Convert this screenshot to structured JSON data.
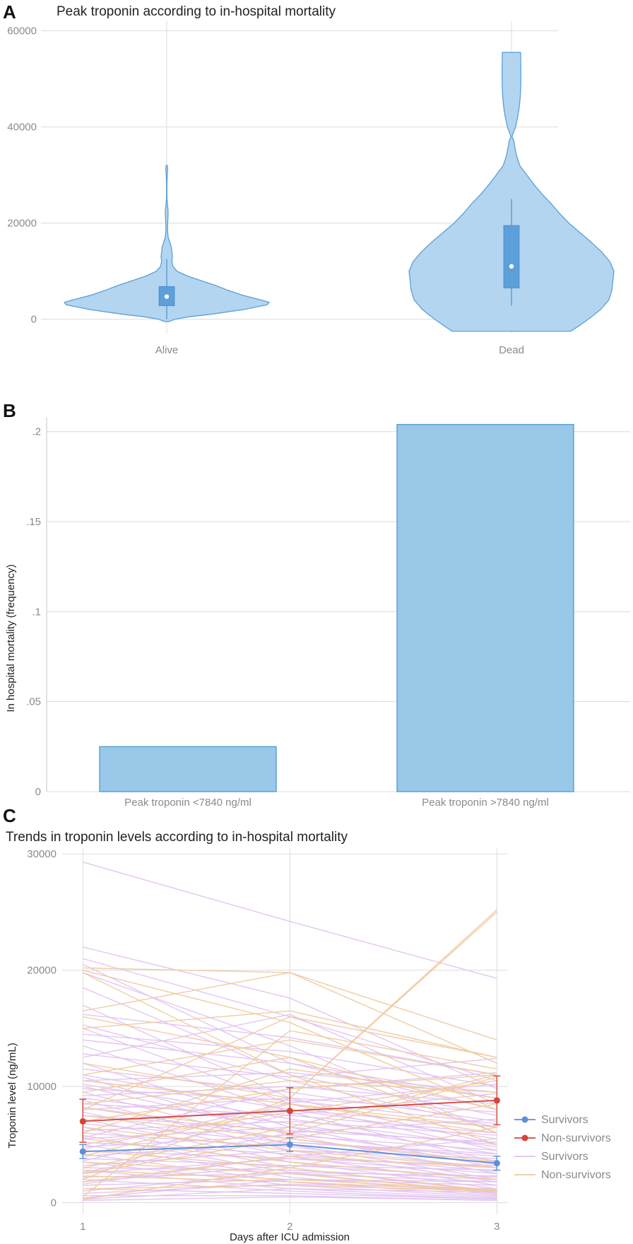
{
  "panels": {
    "A": {
      "letter": "A"
    },
    "B": {
      "letter": "B"
    },
    "C": {
      "letter": "C"
    }
  },
  "chart_data": [
    {
      "type": "violin",
      "title": "Peak troponin according to in-hospital mortality",
      "xlabel": "",
      "ylabel": "",
      "ylim": [
        -3000,
        62000
      ],
      "yticks": [
        0,
        20000,
        40000,
        60000
      ],
      "grid": true,
      "categories": [
        "Alive",
        "Dead"
      ],
      "colors": {
        "fill": "#b3d5f0",
        "stroke": "#5a9fd6",
        "box": "#5d9fd8"
      },
      "groups": [
        {
          "name": "Alive",
          "whisker": [
            0,
            12500
          ],
          "q1": 2800,
          "median": 4700,
          "q3": 6800,
          "range": [
            -500,
            32000
          ],
          "density": [
            [
              -500,
              0.02
            ],
            [
              0,
              0.08
            ],
            [
              500,
              0.22
            ],
            [
              1000,
              0.42
            ],
            [
              2000,
              0.75
            ],
            [
              3000,
              0.98
            ],
            [
              3500,
              1.0
            ],
            [
              4000,
              0.92
            ],
            [
              5000,
              0.74
            ],
            [
              6000,
              0.6
            ],
            [
              7000,
              0.48
            ],
            [
              8000,
              0.34
            ],
            [
              9000,
              0.2
            ],
            [
              10000,
              0.1
            ],
            [
              11000,
              0.06
            ],
            [
              12000,
              0.05
            ],
            [
              13000,
              0.055
            ],
            [
              14000,
              0.05
            ],
            [
              15000,
              0.045
            ],
            [
              16000,
              0.03
            ],
            [
              17000,
              0.015
            ],
            [
              18000,
              0.01
            ],
            [
              19000,
              0.008
            ],
            [
              20000,
              0.009
            ],
            [
              21000,
              0.012
            ],
            [
              22000,
              0.014
            ],
            [
              23000,
              0.012
            ],
            [
              24000,
              0.006
            ],
            [
              25000,
              0.003
            ],
            [
              26000,
              0.002
            ],
            [
              28000,
              0.002
            ],
            [
              30000,
              0.005
            ],
            [
              31000,
              0.008
            ],
            [
              32000,
              0.006
            ]
          ]
        },
        {
          "name": "Dead",
          "whisker": [
            2800,
            25000
          ],
          "q1": 6500,
          "median": 11000,
          "q3": 19500,
          "range": [
            -2500,
            55500
          ],
          "density": [
            [
              -2500,
              0.58
            ],
            [
              -1500,
              0.65
            ],
            [
              0,
              0.75
            ],
            [
              2000,
              0.87
            ],
            [
              4000,
              0.95
            ],
            [
              6000,
              0.98
            ],
            [
              8000,
              0.99
            ],
            [
              10000,
              1.0
            ],
            [
              12000,
              0.96
            ],
            [
              14000,
              0.88
            ],
            [
              16000,
              0.78
            ],
            [
              18000,
              0.67
            ],
            [
              20000,
              0.56
            ],
            [
              22000,
              0.47
            ],
            [
              24000,
              0.39
            ],
            [
              26000,
              0.3
            ],
            [
              28000,
              0.22
            ],
            [
              30000,
              0.15
            ],
            [
              32000,
              0.08
            ],
            [
              34000,
              0.05
            ],
            [
              36000,
              0.03
            ],
            [
              37000,
              0.025
            ],
            [
              38000,
              0.005
            ],
            [
              40000,
              0.04
            ],
            [
              42000,
              0.06
            ],
            [
              44000,
              0.075
            ],
            [
              46000,
              0.085
            ],
            [
              48000,
              0.09
            ],
            [
              50000,
              0.092
            ],
            [
              52000,
              0.092
            ],
            [
              55000,
              0.09
            ],
            [
              55500,
              0.09
            ]
          ]
        }
      ]
    },
    {
      "type": "bar",
      "title": "",
      "xlabel": "",
      "ylabel": "In hospital mortality (frequency)",
      "ylim": [
        0,
        0.205
      ],
      "yticks": [
        0,
        0.05,
        0.1,
        0.15,
        0.2
      ],
      "ytick_labels": [
        "0",
        ".05",
        ".1",
        ".15",
        ".2"
      ],
      "grid": true,
      "categories": [
        "Peak troponin <7840 ng/ml",
        "Peak troponin >7840 ng/ml"
      ],
      "values": [
        0.025,
        0.204
      ],
      "colors": {
        "fill": "#99c8e8",
        "stroke": "#4d9ad0"
      }
    },
    {
      "type": "line",
      "title": "Trends in troponin levels according to in-hospital mortality",
      "xlabel": "Days after ICU admission",
      "ylabel": "Troponin level (ng/mL)",
      "ylim": [
        -1000,
        30500
      ],
      "yticks": [
        0,
        10000,
        20000,
        30000
      ],
      "x": [
        1,
        2,
        3
      ],
      "xlim": [
        0.9,
        3.05
      ],
      "grid": true,
      "legend_position": "right",
      "series": [
        {
          "name": "Survivors",
          "kind": "mean",
          "color": "#5b8fd9",
          "values": [
            4400,
            5000,
            3400
          ],
          "err_low": [
            3800,
            4400,
            2800
          ],
          "err_high": [
            5000,
            5600,
            4000
          ]
        },
        {
          "name": "Non-survivors",
          "kind": "mean",
          "color": "#d6443a",
          "values": [
            7000,
            7900,
            8800
          ],
          "err_low": [
            5200,
            5900,
            6700
          ],
          "err_high": [
            8900,
            9900,
            10900
          ]
        },
        {
          "name": "Survivors",
          "kind": "individual",
          "color": "#e3c3f0",
          "lines": [
            [
              29300,
              24200,
              19300
            ],
            [
              22000,
              17600,
              9800
            ],
            [
              21000,
              16000,
              10500
            ],
            [
              20500,
              12000,
              8000
            ],
            [
              19800,
              13500,
              6000
            ],
            [
              18500,
              11000,
              7500
            ],
            [
              17000,
              9000,
              5000
            ],
            [
              16200,
              14200,
              11000
            ],
            [
              15300,
              10500,
              6500
            ],
            [
              15000,
              8500,
              4500
            ],
            [
              14000,
              12000,
              9000
            ],
            [
              13500,
              7800,
              3500
            ],
            [
              12800,
              10800,
              12400
            ],
            [
              12000,
              6500,
              3000
            ],
            [
              11500,
              9500,
              7000
            ],
            [
              11000,
              8000,
              5500
            ],
            [
              10800,
              5800,
              2500
            ],
            [
              10500,
              11200,
              9500
            ],
            [
              10200,
              7200,
              4800
            ],
            [
              10000,
              6000,
              3600
            ],
            [
              9800,
              8800,
              6800
            ],
            [
              9500,
              5000,
              2000
            ],
            [
              9200,
              10000,
              8500
            ],
            [
              9000,
              6800,
              4200
            ],
            [
              8800,
              4500,
              1800
            ],
            [
              8500,
              7500,
              6000
            ],
            [
              8200,
              5500,
              3300
            ],
            [
              8000,
              9000,
              7800
            ],
            [
              7800,
              4000,
              1500
            ],
            [
              7500,
              6200,
              5200
            ],
            [
              7200,
              3500,
              1200
            ],
            [
              7000,
              8000,
              6500
            ],
            [
              6800,
              5200,
              4000
            ],
            [
              6500,
              3000,
              900
            ],
            [
              6200,
              7000,
              5800
            ],
            [
              6000,
              4800,
              3000
            ],
            [
              5800,
              2600,
              800
            ],
            [
              5500,
              6500,
              5000
            ],
            [
              5200,
              4200,
              2700
            ],
            [
              5000,
              2200,
              700
            ],
            [
              4800,
              5800,
              4500
            ],
            [
              4500,
              3800,
              2500
            ],
            [
              4200,
              1800,
              600
            ],
            [
              4000,
              5200,
              4200
            ],
            [
              3800,
              3200,
              2200
            ],
            [
              3500,
              1500,
              500
            ],
            [
              3200,
              4500,
              3800
            ],
            [
              3000,
              2800,
              2000
            ],
            [
              2800,
              1200,
              400
            ],
            [
              2500,
              3800,
              3200
            ],
            [
              2200,
              2500,
              1800
            ],
            [
              2000,
              1000,
              300
            ],
            [
              1800,
              3200,
              2800
            ],
            [
              1500,
              2000,
              1500
            ],
            [
              1200,
              800,
              300
            ],
            [
              1000,
              2600,
              2300
            ],
            [
              800,
              1600,
              1200
            ],
            [
              600,
              600,
              200
            ],
            [
              400,
              2000,
              1800
            ],
            [
              300,
              1200,
              900
            ],
            [
              200,
              500,
              200
            ],
            [
              1600,
              4000,
              5500
            ],
            [
              2600,
              6000,
              7200
            ],
            [
              3600,
              7600,
              9400
            ],
            [
              4600,
              8600,
              10200
            ],
            [
              5600,
              9800,
              11200
            ],
            [
              12500,
              16200,
              8500
            ],
            [
              14500,
              13000,
              10000
            ]
          ]
        },
        {
          "name": "Non-survivors",
          "kind": "individual",
          "color": "#f0c9a0",
          "lines": [
            [
              20200,
              19800,
              12000
            ],
            [
              20000,
              15500,
              8000
            ],
            [
              19800,
              11000,
              5000
            ],
            [
              16500,
              19800,
              14000
            ],
            [
              16000,
              12500,
              6000
            ],
            [
              15000,
              16500,
              12500
            ],
            [
              12000,
              9000,
              25200
            ],
            [
              11000,
              14000,
              11000
            ],
            [
              10500,
              8500,
              6500
            ],
            [
              9500,
              12500,
              8000
            ],
            [
              8500,
              10500,
              9500
            ],
            [
              8200,
              6000,
              10800
            ],
            [
              8000,
              16000,
              12500
            ],
            [
              7500,
              5500,
              3500
            ],
            [
              7000,
              9800,
              11000
            ],
            [
              6500,
              4500,
              3000
            ],
            [
              6000,
              11500,
              9000
            ],
            [
              5500,
              3500,
              2000
            ],
            [
              5000,
              7800,
              10500
            ],
            [
              4500,
              3000,
              1000
            ],
            [
              4000,
              8500,
              6000
            ],
            [
              3500,
              2500,
              900
            ],
            [
              3000,
              6500,
              11000
            ],
            [
              2800,
              2000,
              1100
            ],
            [
              2500,
              5500,
              8500
            ],
            [
              2300,
              1800,
              1000
            ],
            [
              2000,
              9000,
              25000
            ],
            [
              1800,
              4000,
              3000
            ],
            [
              1200,
              1500,
              1000
            ],
            [
              500,
              14800,
              11500
            ],
            [
              300,
              3000,
              6500
            ]
          ]
        }
      ],
      "legend": [
        {
          "label": "Survivors",
          "style": "point-line",
          "color": "#5b8fd9"
        },
        {
          "label": "Non-survivors",
          "style": "point-line",
          "color": "#d6443a"
        },
        {
          "label": "Survivors",
          "style": "line",
          "color": "#e3c3f0"
        },
        {
          "label": "Non-survivors",
          "style": "line",
          "color": "#f0c9a0"
        }
      ]
    }
  ]
}
